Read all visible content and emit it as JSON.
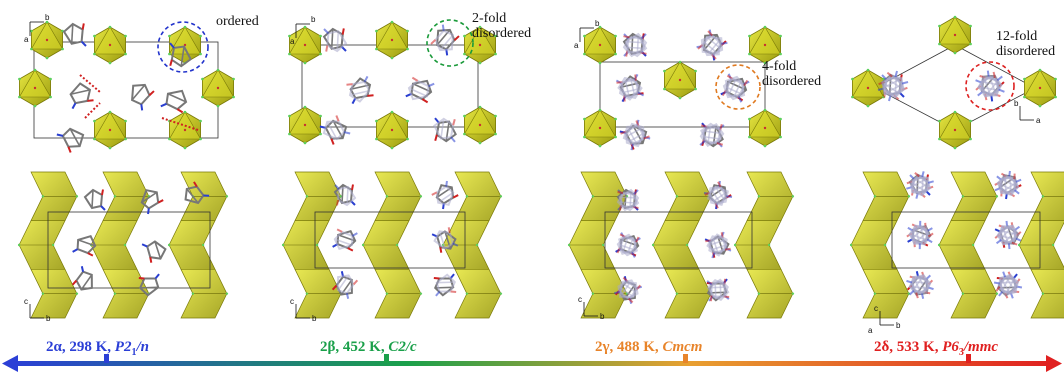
{
  "panels": [
    {
      "id": "alpha",
      "callout": [
        "ordered"
      ],
      "callout_color": "#2233cc",
      "axes_top": [
        "b",
        "a"
      ],
      "axes_bottom": [
        "c",
        "b"
      ],
      "label": {
        "phase": "2α, 298 K, ",
        "group": "P2",
        "sub": "1",
        "tail": "/n"
      },
      "label_color": "#2b3fd6"
    },
    {
      "id": "beta",
      "callout": [
        "2-fold",
        "disordered"
      ],
      "callout_color": "#1a9a3a",
      "axes_top": [
        "b",
        "a"
      ],
      "axes_bottom": [
        "c",
        "b"
      ],
      "label": {
        "phase": "2β, 452 K, ",
        "group": "C2/c",
        "sub": "",
        "tail": ""
      },
      "label_color": "#1aa04a"
    },
    {
      "id": "gamma",
      "callout": [
        "4-fold",
        "disordered"
      ],
      "callout_color": "#e07a20",
      "axes_top": [
        "b",
        "a"
      ],
      "axes_bottom": [
        "c",
        "b"
      ],
      "label": {
        "phase": "2γ, 488 K, ",
        "group": "Cmcm",
        "sub": "",
        "tail": ""
      },
      "label_color": "#e8842a"
    },
    {
      "id": "delta",
      "callout": [
        "12-fold",
        "disordered"
      ],
      "callout_color": "#dd2020",
      "axes_top": [
        "b",
        "a"
      ],
      "axes_bottom": [
        "c",
        "a",
        "b"
      ],
      "label": {
        "phase": "2δ, 533 K, ",
        "group": "P6",
        "sub": "3",
        "tail": "/mmc"
      },
      "label_color": "#e02020"
    }
  ],
  "colors": {
    "octahedron": "#c8c814",
    "octahedron_dark": "#8f8f0a",
    "cage": "#777777",
    "nitrogen": "#2a3fd0",
    "oxygen": "#d02020",
    "hydrogen": "#4ab0e0",
    "cell": "#333333",
    "arrow_start": "#2b3fd6",
    "arrow_mid": "#1aa04a",
    "arrow_end": "#e02020"
  }
}
